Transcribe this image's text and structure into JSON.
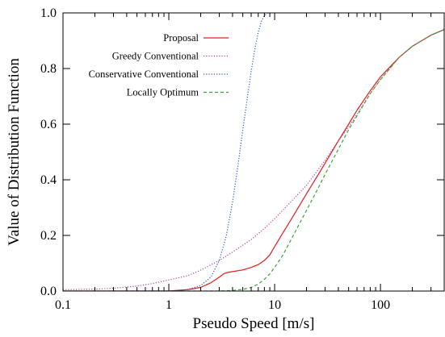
{
  "chart_data": {
    "type": "line",
    "title": "",
    "xlabel": "Pseudo Speed [m/s]",
    "ylabel": "Value of Distribution Function",
    "xscale": "log",
    "xlim": [
      0.1,
      400
    ],
    "ylim": [
      0,
      1.0
    ],
    "grid": false,
    "legend_position": "top-right",
    "x_ticks": [
      {
        "value": 0.1,
        "label": "0.1"
      },
      {
        "value": 1,
        "label": "1"
      },
      {
        "value": 10,
        "label": "10"
      },
      {
        "value": 100,
        "label": "100"
      }
    ],
    "y_ticks": [
      {
        "value": 0.0,
        "label": "0.0"
      },
      {
        "value": 0.2,
        "label": "0.2"
      },
      {
        "value": 0.4,
        "label": "0.4"
      },
      {
        "value": 0.6,
        "label": "0.6"
      },
      {
        "value": 0.8,
        "label": "0.8"
      },
      {
        "value": 1.0,
        "label": "1.0"
      }
    ],
    "series": [
      {
        "name": "Proposal",
        "color": "#e8191b",
        "dash": "solid",
        "x": [
          0.1,
          1,
          1.5,
          2,
          2.5,
          3,
          3.3,
          3.6,
          4,
          5,
          6,
          7,
          8,
          9,
          10,
          12,
          15,
          20,
          25,
          30,
          40,
          50,
          60,
          80,
          100,
          150,
          200,
          300,
          400
        ],
        "y": [
          0,
          0,
          0.005,
          0.013,
          0.03,
          0.05,
          0.062,
          0.067,
          0.07,
          0.076,
          0.085,
          0.095,
          0.11,
          0.13,
          0.16,
          0.21,
          0.27,
          0.35,
          0.41,
          0.46,
          0.54,
          0.6,
          0.65,
          0.72,
          0.77,
          0.84,
          0.88,
          0.92,
          0.94
        ]
      },
      {
        "name": "Greedy Conventional",
        "color": "#b3449c",
        "dash": "dot",
        "x": [
          0.1,
          0.2,
          0.3,
          0.5,
          0.7,
          1,
          1.5,
          2,
          3,
          4,
          5,
          6,
          8,
          10,
          15,
          20,
          30,
          40,
          50,
          60,
          80,
          100,
          150,
          200,
          300,
          400
        ],
        "y": [
          0.005,
          0.007,
          0.01,
          0.018,
          0.027,
          0.04,
          0.055,
          0.075,
          0.11,
          0.14,
          0.165,
          0.185,
          0.225,
          0.26,
          0.33,
          0.38,
          0.47,
          0.54,
          0.59,
          0.635,
          0.71,
          0.76,
          0.84,
          0.88,
          0.92,
          0.94
        ]
      },
      {
        "name": "Conservative Conventional",
        "color": "#2c55b8",
        "dash": "dot",
        "x": [
          0.1,
          1,
          1.5,
          2,
          2.5,
          3,
          3.5,
          4,
          4.5,
          5,
          5.5,
          6,
          6.5,
          7,
          7.5,
          8,
          8.6
        ],
        "y": [
          0,
          0,
          0.005,
          0.02,
          0.05,
          0.11,
          0.2,
          0.32,
          0.45,
          0.58,
          0.69,
          0.79,
          0.87,
          0.93,
          0.97,
          0.99,
          1.0
        ]
      },
      {
        "name": "Locally Optimum",
        "color": "#3aa537",
        "dash": "dash",
        "x": [
          0.1,
          1,
          3,
          4,
          5,
          6,
          7,
          8,
          9,
          10,
          12,
          15,
          20,
          25,
          30,
          40,
          50,
          60,
          80,
          100,
          150,
          200,
          300,
          400
        ],
        "y": [
          0,
          0,
          0,
          0.002,
          0.006,
          0.013,
          0.025,
          0.042,
          0.062,
          0.085,
          0.13,
          0.2,
          0.29,
          0.36,
          0.42,
          0.51,
          0.58,
          0.63,
          0.71,
          0.76,
          0.84,
          0.88,
          0.92,
          0.94
        ]
      }
    ]
  }
}
